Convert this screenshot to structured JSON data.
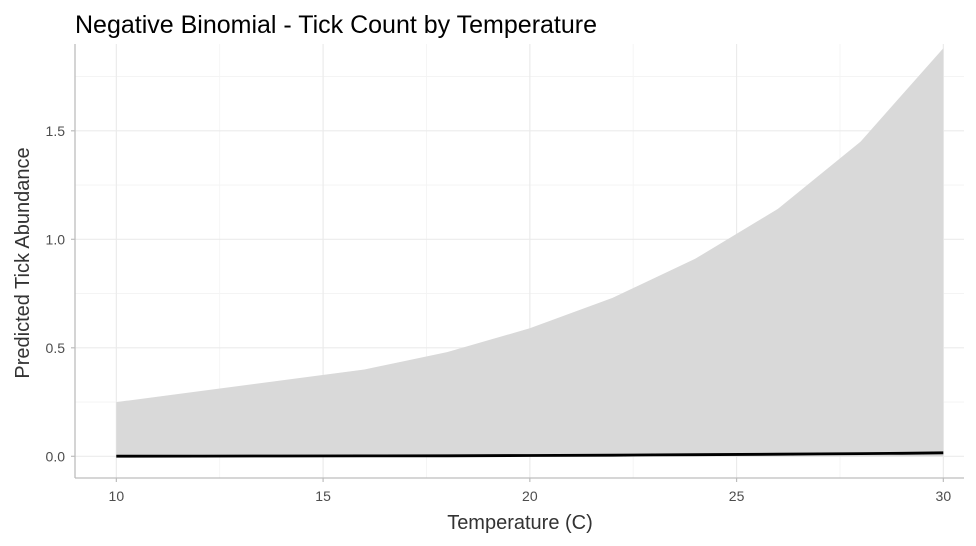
{
  "chart_data": {
    "type": "line",
    "title": "Negative Binomial - Tick Count by Temperature",
    "xlabel": "Temperature (C)",
    "ylabel": "Predicted Tick Abundance",
    "xlim": [
      9,
      30.5
    ],
    "ylim": [
      -0.1,
      1.9
    ],
    "x_ticks": [
      10,
      15,
      20,
      25,
      30
    ],
    "x_tick_labels": [
      "10",
      "15",
      "20",
      "25",
      "30"
    ],
    "y_ticks": [
      0.0,
      0.5,
      1.0,
      1.5
    ],
    "y_tick_labels": [
      "0.0",
      "0.5",
      "1.0",
      "1.5"
    ],
    "grid": true,
    "legend": "none",
    "line_color": "#000000",
    "ribbon_color": "#d9d9d9",
    "series": [
      {
        "type": "ribbon",
        "x": [
          10,
          12,
          14,
          16,
          18,
          20,
          22,
          24,
          26,
          28,
          30
        ],
        "ymin": [
          0,
          0,
          0,
          0,
          0,
          0,
          0,
          0,
          0,
          0,
          0
        ],
        "ymax": [
          0.25,
          0.3,
          0.35,
          0.4,
          0.48,
          0.59,
          0.73,
          0.91,
          1.14,
          1.45,
          1.88
        ]
      },
      {
        "type": "line",
        "x": [
          10,
          12,
          14,
          16,
          18,
          20,
          22,
          23,
          24,
          26,
          27,
          28,
          29,
          30
        ],
        "y": [
          0.0005,
          0.0008,
          0.0012,
          0.0017,
          0.0025,
          0.0036,
          0.0052,
          0.0063,
          0.0076,
          0.0095,
          0.011,
          0.0125,
          0.014,
          0.016
        ]
      }
    ]
  }
}
